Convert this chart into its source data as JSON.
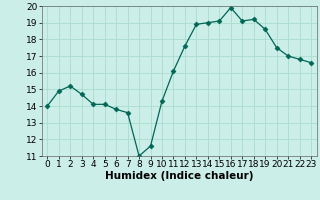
{
  "x": [
    0,
    1,
    2,
    3,
    4,
    5,
    6,
    7,
    8,
    9,
    10,
    11,
    12,
    13,
    14,
    15,
    16,
    17,
    18,
    19,
    20,
    21,
    22,
    23
  ],
  "y": [
    14.0,
    14.9,
    15.2,
    14.7,
    14.1,
    14.1,
    13.8,
    13.6,
    11.0,
    11.6,
    14.3,
    16.1,
    17.6,
    18.9,
    19.0,
    19.1,
    19.9,
    19.1,
    19.2,
    18.6,
    17.5,
    17.0,
    16.8,
    16.6
  ],
  "line_color": "#006655",
  "marker": "D",
  "marker_size": 2.5,
  "bg_color": "#cceee8",
  "grid_color": "#aaddcc",
  "xlabel": "Humidex (Indice chaleur)",
  "ylim": [
    11,
    20
  ],
  "xlim": [
    -0.5,
    23.5
  ],
  "yticks": [
    11,
    12,
    13,
    14,
    15,
    16,
    17,
    18,
    19,
    20
  ],
  "xticks": [
    0,
    1,
    2,
    3,
    4,
    5,
    6,
    7,
    8,
    9,
    10,
    11,
    12,
    13,
    14,
    15,
    16,
    17,
    18,
    19,
    20,
    21,
    22,
    23
  ],
  "tick_fontsize": 6.5,
  "label_fontsize": 7.5
}
